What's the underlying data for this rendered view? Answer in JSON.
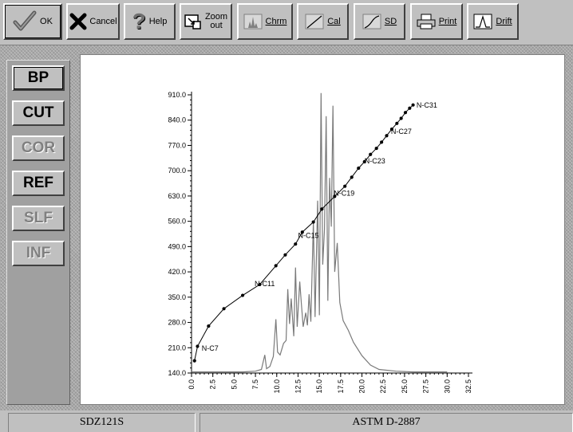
{
  "toolbar": {
    "ok": "OK",
    "cancel": "Cancel",
    "help": "Help",
    "zoom_line1": "Zoom",
    "zoom_line2": "out",
    "chrm": "Chrm",
    "cal": "Cal",
    "sd": "SD",
    "print": "Print",
    "drift": "Drift"
  },
  "sidebar": {
    "items": [
      {
        "label": "BP",
        "state": "active"
      },
      {
        "label": "CUT",
        "state": "normal"
      },
      {
        "label": "COR",
        "state": "disabled"
      },
      {
        "label": "REF",
        "state": "normal"
      },
      {
        "label": "SLF",
        "state": "disabled"
      },
      {
        "label": "INF",
        "state": "disabled"
      }
    ]
  },
  "status": {
    "left": "SDZ121S",
    "right": "ASTM D-2887"
  },
  "colors": {
    "calibration_line": "#000000",
    "chromatogram": "#7a7a7a"
  },
  "chart_data": {
    "type": "line",
    "x_ticks": [
      "0.0",
      "2.5",
      "5.0",
      "7.5",
      "10.0",
      "12.5",
      "15.0",
      "17.5",
      "20.0",
      "22.5",
      "25.0",
      "27.5",
      "30.0",
      "32.5"
    ],
    "y_ticks": [
      "140.0",
      "210.0",
      "280.0",
      "350.0",
      "420.0",
      "490.0",
      "560.0",
      "630.0",
      "700.0",
      "770.0",
      "840.0",
      "910.0"
    ],
    "xlim": [
      0,
      32.5
    ],
    "ylim": [
      140,
      910
    ],
    "grid": false,
    "series": [
      {
        "kind": "calibration",
        "points": [
          [
            0.35,
            174
          ],
          [
            0.7,
            214
          ],
          [
            2,
            270
          ],
          [
            3.8,
            318
          ],
          [
            6,
            355
          ],
          [
            8,
            385
          ],
          [
            9.9,
            437
          ],
          [
            11,
            467
          ],
          [
            12.2,
            497
          ],
          [
            13,
            530
          ],
          [
            14.3,
            558
          ],
          [
            15.3,
            594
          ],
          [
            16.8,
            629
          ],
          [
            18,
            657
          ],
          [
            18.8,
            682
          ],
          [
            19.6,
            707
          ],
          [
            20.3,
            725
          ],
          [
            21,
            745
          ],
          [
            21.7,
            762
          ],
          [
            22.3,
            779
          ],
          [
            22.9,
            797
          ],
          [
            23.5,
            815
          ],
          [
            24.1,
            831
          ],
          [
            24.6,
            845
          ],
          [
            25.1,
            861
          ],
          [
            25.6,
            873
          ],
          [
            26,
            882
          ]
        ]
      },
      {
        "kind": "chromatogram",
        "points": [
          [
            0,
            143
          ],
          [
            6,
            143
          ],
          [
            7.5,
            145
          ],
          [
            8.2,
            150
          ],
          [
            8.6,
            190
          ],
          [
            8.8,
            152
          ],
          [
            9.2,
            158
          ],
          [
            9.6,
            186
          ],
          [
            9.9,
            289
          ],
          [
            10.1,
            198
          ],
          [
            10.4,
            190
          ],
          [
            10.8,
            222
          ],
          [
            11.1,
            230
          ],
          [
            11.3,
            372
          ],
          [
            11.5,
            276
          ],
          [
            11.7,
            346
          ],
          [
            12,
            242
          ],
          [
            12.2,
            432
          ],
          [
            12.4,
            268
          ],
          [
            12.7,
            393
          ],
          [
            12.9,
            330
          ],
          [
            13.1,
            268
          ],
          [
            13.4,
            307
          ],
          [
            13.6,
            272
          ],
          [
            13.8,
            358
          ],
          [
            14,
            282
          ],
          [
            14.3,
            560
          ],
          [
            14.5,
            295
          ],
          [
            14.8,
            617
          ],
          [
            15,
            300
          ],
          [
            15.2,
            915
          ],
          [
            15.4,
            440
          ],
          [
            15.6,
            538
          ],
          [
            15.8,
            851
          ],
          [
            16,
            340
          ],
          [
            16.2,
            680
          ],
          [
            16.4,
            545
          ],
          [
            16.6,
            880
          ],
          [
            16.8,
            420
          ],
          [
            17.1,
            500
          ],
          [
            17.4,
            335
          ],
          [
            17.8,
            285
          ],
          [
            18.4,
            258
          ],
          [
            19,
            225
          ],
          [
            20,
            188
          ],
          [
            21,
            162
          ],
          [
            22,
            150
          ],
          [
            24,
            145
          ],
          [
            26,
            143
          ],
          [
            30,
            143
          ]
        ]
      }
    ],
    "annotations": [
      {
        "text": "N-C7",
        "x": 1.2,
        "y": 202
      },
      {
        "text": "N-C11",
        "x": 7.4,
        "y": 380
      },
      {
        "text": "N-C15",
        "x": 12.5,
        "y": 514
      },
      {
        "text": "N-C19",
        "x": 16.7,
        "y": 631
      },
      {
        "text": "N-C23",
        "x": 20.3,
        "y": 720
      },
      {
        "text": "N-C27",
        "x": 23.4,
        "y": 802
      },
      {
        "text": "N-C31",
        "x": 26.4,
        "y": 875
      }
    ]
  }
}
